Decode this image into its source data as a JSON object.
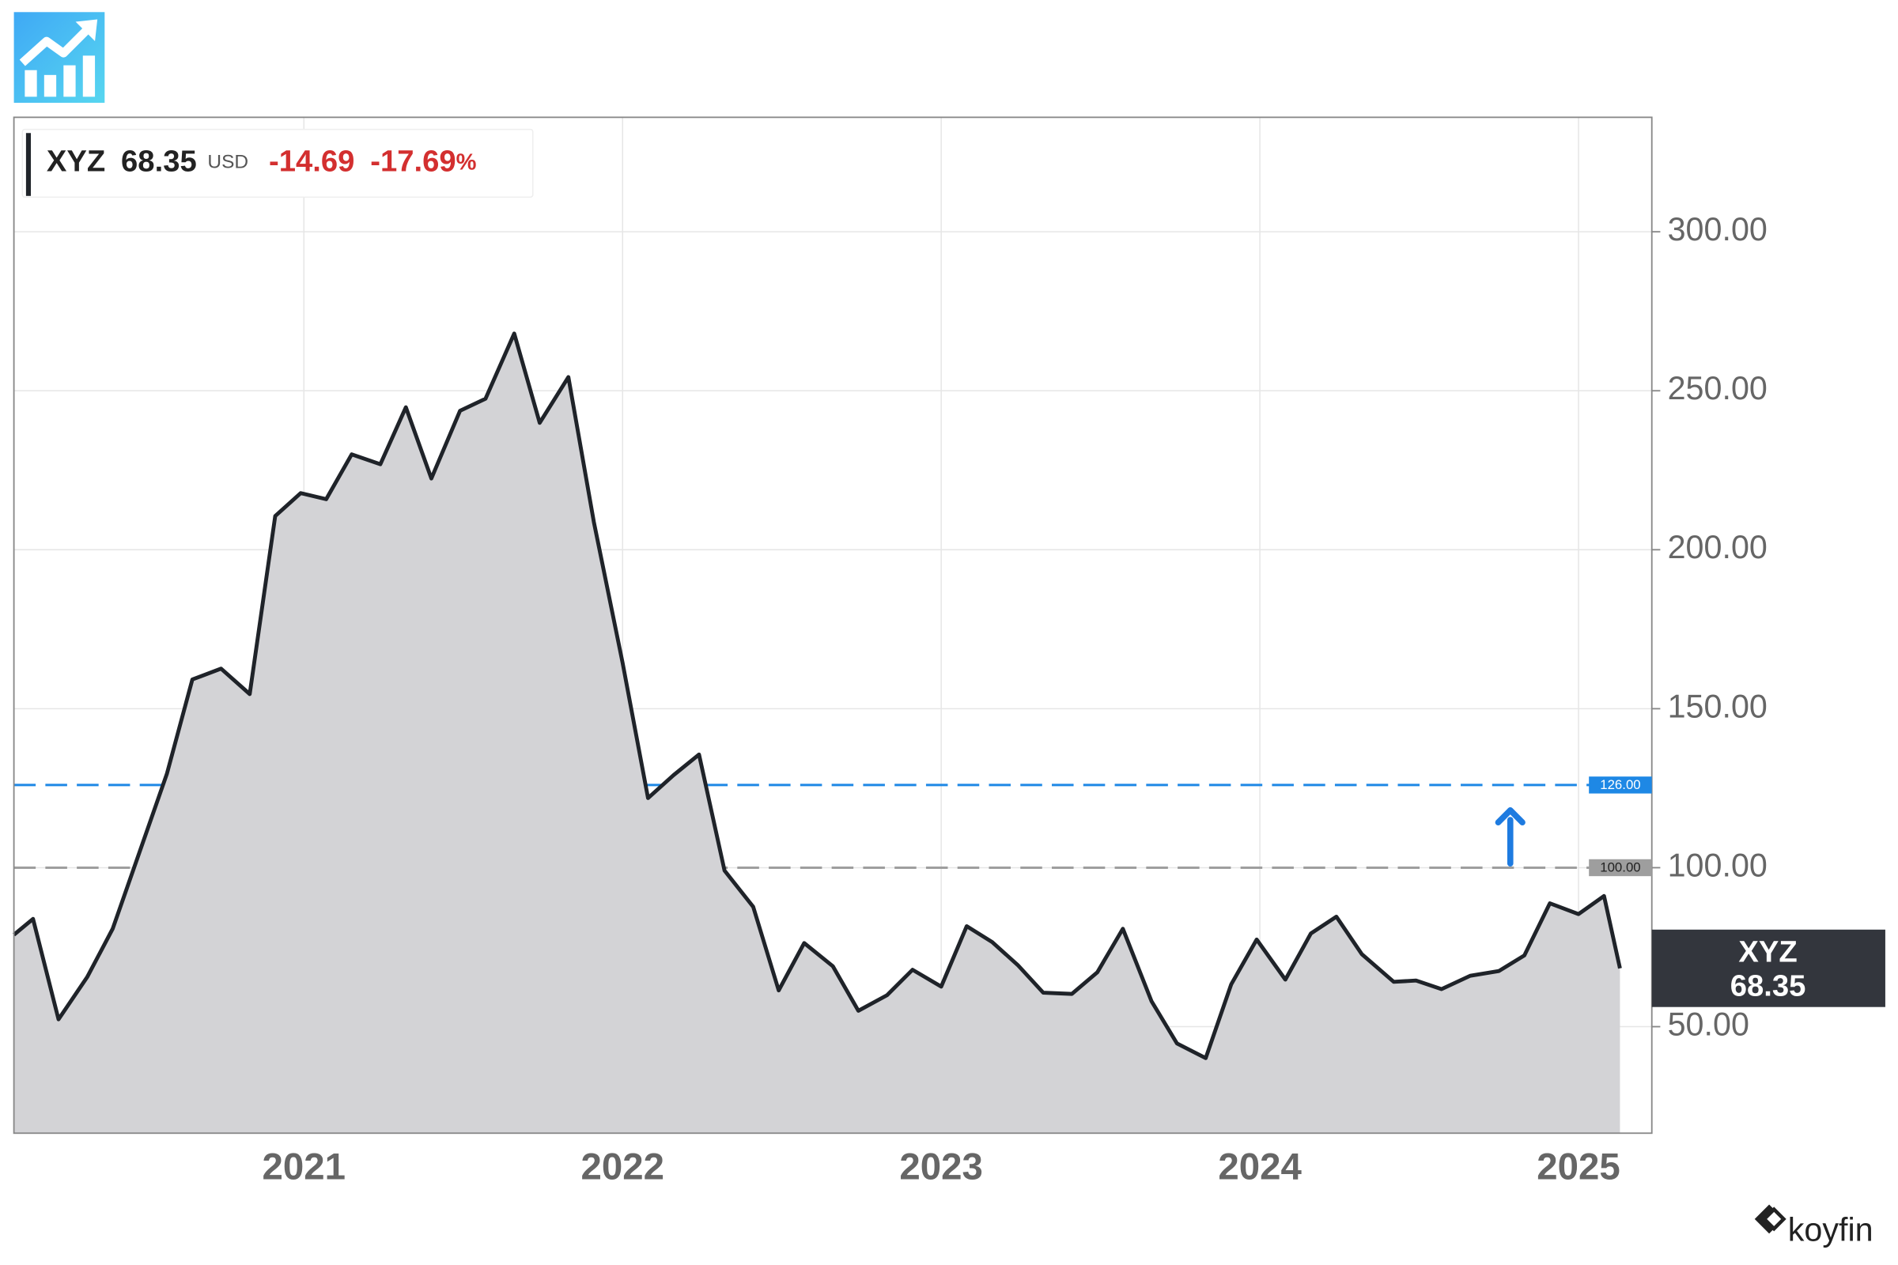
{
  "chart_data": {
    "type": "area-line",
    "header": {
      "symbol": "XYZ",
      "price": "68.35",
      "currency": "USD",
      "change": "-14.69",
      "change_pct": "-17.69",
      "pct_sign": "%"
    },
    "watermark": "koyfin",
    "x": [
      2020.09,
      2020.15,
      2020.23,
      2020.32,
      2020.4,
      2020.48,
      2020.57,
      2020.65,
      2020.74,
      2020.83,
      2020.91,
      2020.99,
      2021.07,
      2021.15,
      2021.24,
      2021.32,
      2021.4,
      2021.49,
      2021.57,
      2021.66,
      2021.74,
      2021.83,
      2021.91,
      2022.0,
      2022.08,
      2022.16,
      2022.24,
      2022.32,
      2022.41,
      2022.49,
      2022.57,
      2022.66,
      2022.74,
      2022.83,
      2022.91,
      2023.0,
      2023.08,
      2023.16,
      2023.24,
      2023.32,
      2023.41,
      2023.49,
      2023.57,
      2023.66,
      2023.74,
      2023.83,
      2023.91,
      2023.99,
      2024.08,
      2024.16,
      2024.24,
      2024.32,
      2024.42,
      2024.49,
      2024.57,
      2024.66,
      2024.75,
      2024.83,
      2024.91,
      2025.0,
      2025.08,
      2025.13
    ],
    "series": [
      {
        "name": "XYZ",
        "color": "#1f2329",
        "fill": "#d3d3d6",
        "values": [
          78.9,
          83.9,
          52.3,
          65.6,
          80.8,
          103.7,
          129.5,
          159.2,
          162.6,
          154.6,
          210.6,
          217.8,
          215.9,
          230.0,
          226.9,
          244.8,
          222.4,
          243.7,
          247.5,
          268.0,
          239.9,
          254.3,
          208.7,
          164.5,
          121.9,
          129.1,
          135.6,
          99.1,
          87.7,
          61.4,
          76.3,
          69.0,
          55.0,
          59.9,
          67.9,
          62.6,
          81.6,
          76.6,
          69.4,
          60.7,
          60.3,
          67.1,
          80.8,
          58.0,
          44.7,
          40.1,
          63.3,
          77.4,
          64.8,
          79.3,
          84.6,
          72.8,
          64.1,
          64.5,
          61.8,
          66.0,
          67.5,
          72.4,
          88.8,
          85.4,
          91.1,
          68.35
        ]
      }
    ],
    "xlim": [
      2020.09,
      2025.23
    ],
    "xticks": [
      2021,
      2022,
      2023,
      2024,
      2025
    ],
    "ylim": [
      16.5,
      336
    ],
    "yticks": [
      {
        "value": 50,
        "label": "50.00"
      },
      {
        "value": 100,
        "label": "100.00"
      },
      {
        "value": 150,
        "label": "150.00"
      },
      {
        "value": 200,
        "label": "200.00"
      },
      {
        "value": 250,
        "label": "250.00"
      },
      {
        "value": 300,
        "label": "300.00"
      }
    ],
    "ref_lines": [
      {
        "value": 126,
        "label": "126.00",
        "color": "#1e88e5"
      },
      {
        "value": 100,
        "label": "100.00",
        "color": "#9e9e9e"
      }
    ],
    "grid": true
  }
}
